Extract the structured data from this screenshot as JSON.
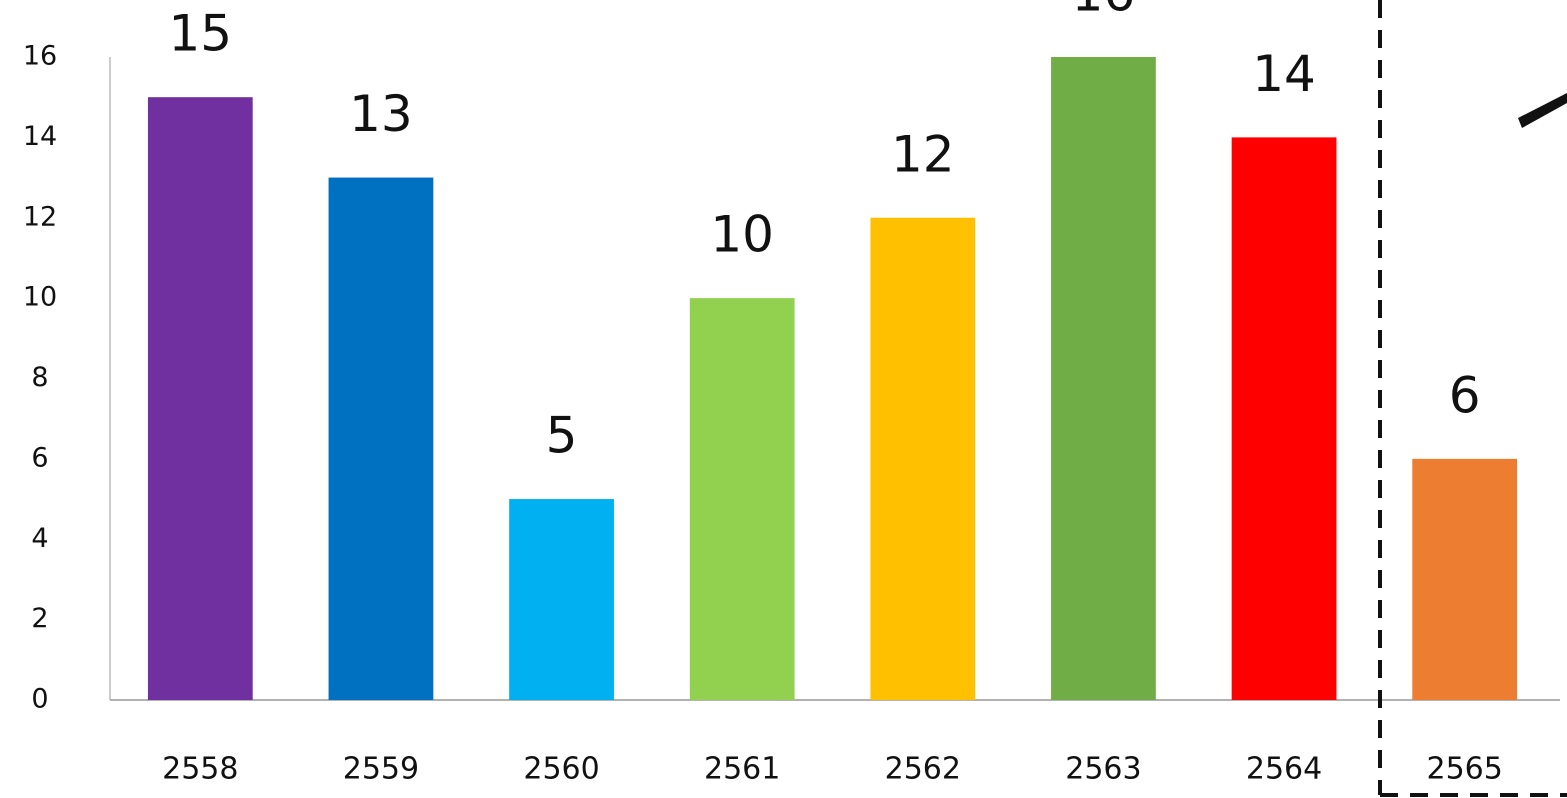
{
  "chart_data": {
    "type": "bar",
    "categories": [
      "2558",
      "2559",
      "2560",
      "2561",
      "2562",
      "2563",
      "2564",
      "2565"
    ],
    "values": [
      15,
      13,
      5,
      10,
      12,
      16,
      14,
      6
    ],
    "colors": [
      "#7030a0",
      "#0070c0",
      "#00b0f0",
      "#92d050",
      "#ffc000",
      "#70ad47",
      "#ff0000",
      "#ed7d31"
    ],
    "ylim": [
      0,
      16
    ],
    "yticks": [
      0,
      2,
      4,
      6,
      8,
      10,
      12,
      14,
      16
    ],
    "grid": false
  }
}
